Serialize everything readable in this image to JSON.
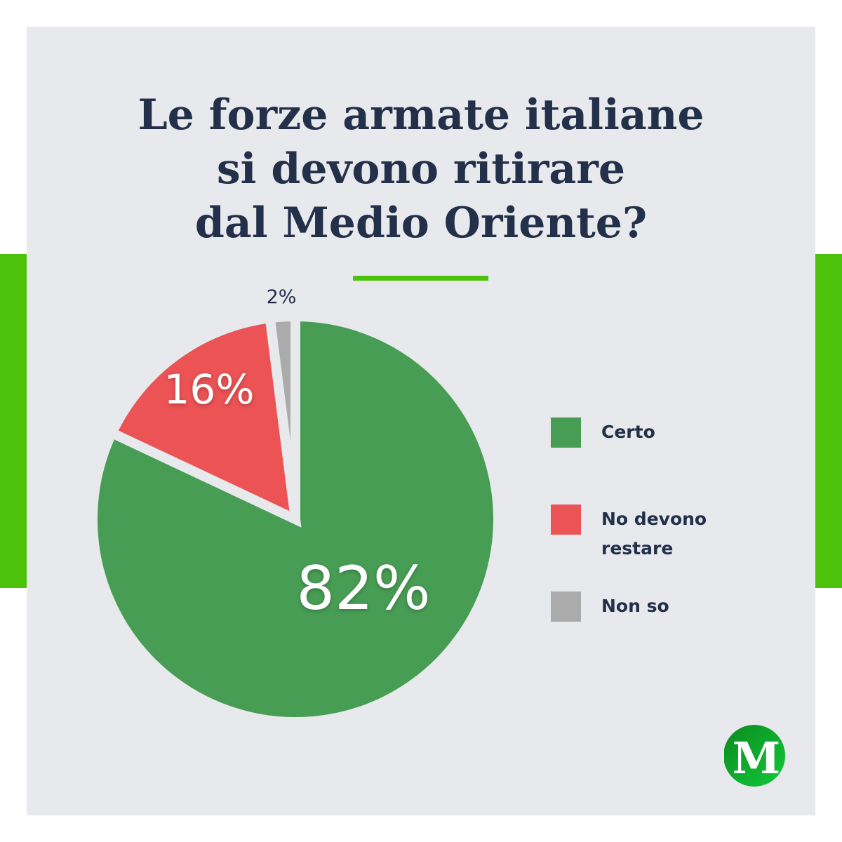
{
  "title_lines": [
    "Le forze armate italiane",
    "si devono ritirare",
    "dal Medio Oriente?"
  ],
  "chart_data": {
    "type": "pie",
    "title": "Le forze armate italiane si devono ritirare dal Medio Oriente?",
    "categories": [
      "Certo",
      "No devono restare",
      "Non so"
    ],
    "values": [
      82,
      16,
      2
    ],
    "labels": [
      "82%",
      "16%",
      "2%"
    ],
    "colors": [
      "#489d54",
      "#ec5355",
      "#ababab"
    ],
    "unit": "%",
    "start": "top, clockwise",
    "legend": "right"
  },
  "legend": {
    "items": [
      {
        "lines": [
          "Certo"
        ],
        "color": "#489d54"
      },
      {
        "lines": [
          "No devono",
          "restare"
        ],
        "color": "#ec5355"
      },
      {
        "lines": [
          "Non so"
        ],
        "color": "#ababab"
      }
    ]
  },
  "accent_color": "#4cc20a",
  "logo": {
    "letter": "M"
  }
}
